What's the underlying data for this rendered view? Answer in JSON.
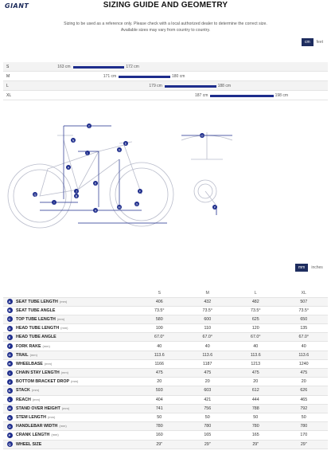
{
  "header": {
    "logo": "GIANT",
    "title": "SIZING GUIDE AND GEOMETRY"
  },
  "disclaimer": {
    "line1": "Sizing to be used as a reference only. Please check with a local authorized dealer to determine the correct size.",
    "line2": "Available sizes may vary from country to country."
  },
  "height_units": {
    "active": "cm",
    "inactive": "feet"
  },
  "sizes": [
    {
      "label": "S",
      "min": "163 cm",
      "max": "172 cm",
      "min_val": 163,
      "max_val": 172
    },
    {
      "label": "M",
      "min": "171 cm",
      "max": "180 cm",
      "min_val": 171,
      "max_val": 180
    },
    {
      "label": "L",
      "min": "179 cm",
      "max": "188 cm",
      "min_val": 179,
      "max_val": 188
    },
    {
      "label": "XL",
      "min": "187 cm",
      "max": "198 cm",
      "min_val": 187,
      "max_val": 198
    }
  ],
  "geometry_units": {
    "active": "mm",
    "inactive": "inches"
  },
  "diagram_letters": [
    "A",
    "B",
    "C",
    "D",
    "E",
    "F",
    "G",
    "H",
    "I",
    "J",
    "K",
    "L",
    "M",
    "N",
    "O",
    "P",
    "Q"
  ],
  "table": {
    "columns": [
      "S",
      "M",
      "L",
      "XL"
    ],
    "unit_label": "(mm)",
    "rows": [
      {
        "badge": "A",
        "label": "SEAT TUBE LENGTH",
        "unit": "(mm)",
        "values": [
          "406",
          "432",
          "482",
          "507"
        ]
      },
      {
        "badge": "B",
        "label": "SEAT TUBE ANGLE",
        "unit": "",
        "values": [
          "73.5°",
          "73.5°",
          "73.5°",
          "73.5°"
        ]
      },
      {
        "badge": "C",
        "label": "TOP TUBE LENGTH",
        "unit": "(mm)",
        "values": [
          "580",
          "600",
          "625",
          "650"
        ]
      },
      {
        "badge": "D",
        "label": "HEAD TUBE LENGTH",
        "unit": "(mm)",
        "values": [
          "100",
          "110",
          "120",
          "135"
        ]
      },
      {
        "badge": "E",
        "label": "HEAD TUBE ANGLE",
        "unit": "",
        "values": [
          "67.0°",
          "67.0°",
          "67.0°",
          "67.0°"
        ]
      },
      {
        "badge": "F",
        "label": "FORK RAKE",
        "unit": "(mm)",
        "values": [
          "40",
          "40",
          "40",
          "40"
        ]
      },
      {
        "badge": "G",
        "label": "TRAIL",
        "unit": "(mm)",
        "values": [
          "113.6",
          "113.6",
          "113.6",
          "113.6"
        ]
      },
      {
        "badge": "H",
        "label": "WHEELBASE",
        "unit": "(mm)",
        "values": [
          "1166",
          "1187",
          "1213",
          "1240"
        ]
      },
      {
        "badge": "I",
        "label": "CHAIN STAY LENGTH",
        "unit": "(mm)",
        "values": [
          "475",
          "475",
          "475",
          "475"
        ]
      },
      {
        "badge": "J",
        "label": "BOTTOM BRACKET DROP",
        "unit": "(mm)",
        "values": [
          "20",
          "20",
          "20",
          "20"
        ]
      },
      {
        "badge": "K",
        "label": "STACK",
        "unit": "(mm)",
        "values": [
          "593",
          "603",
          "612",
          "626"
        ]
      },
      {
        "badge": "L",
        "label": "REACH",
        "unit": "(mm)",
        "values": [
          "404",
          "421",
          "444",
          "465"
        ]
      },
      {
        "badge": "M",
        "label": "STAND OVER HEIGHT",
        "unit": "(mm)",
        "values": [
          "741",
          "756",
          "788",
          "792"
        ]
      },
      {
        "badge": "N",
        "label": "STEM LENGTH",
        "unit": "(mm)",
        "values": [
          "50",
          "50",
          "50",
          "50"
        ]
      },
      {
        "badge": "O",
        "label": "HANDLEBAR WIDTH",
        "unit": "(mm)",
        "values": [
          "780",
          "780",
          "780",
          "780"
        ]
      },
      {
        "badge": "P",
        "label": "CRANK LENGTH",
        "unit": "(mm)",
        "values": [
          "160",
          "165",
          "165",
          "170"
        ]
      },
      {
        "badge": "Q",
        "label": "WHEEL SIZE",
        "unit": "",
        "values": [
          "29\"",
          "29\"",
          "29\"",
          "29\""
        ]
      }
    ]
  },
  "colors": {
    "accent": "#1e2d8c",
    "navy": "#1e2d5f"
  }
}
